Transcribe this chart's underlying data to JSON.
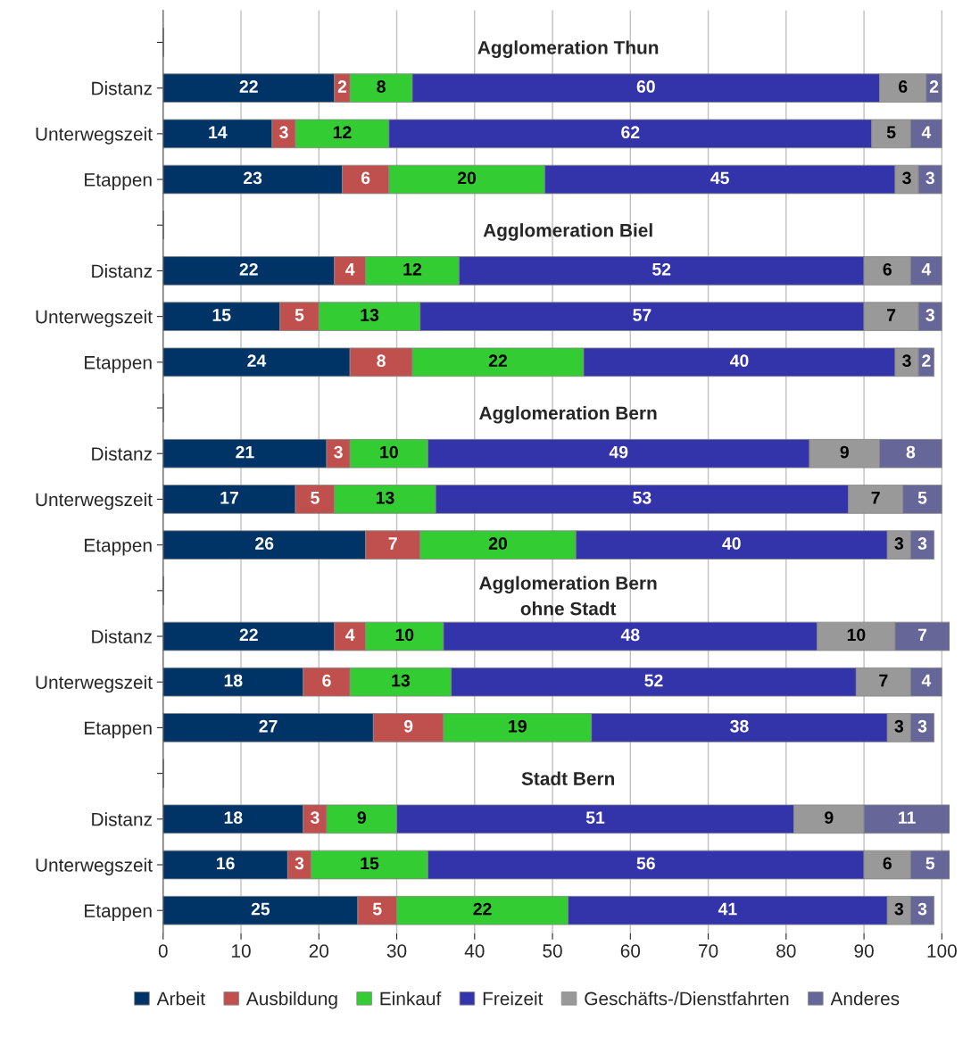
{
  "chart_data": {
    "type": "bar",
    "orientation": "horizontal",
    "stacked": true,
    "data_labels": true,
    "categories": [
      null,
      "Distanz",
      "Unterwegszeit",
      "Etappen",
      null,
      "Distanz",
      "Unterwegszeit",
      "Etappen",
      null,
      "Distanz",
      "Unterwegszeit",
      "Etappen",
      null,
      "Distanz",
      "Unterwegszeit",
      "Etappen",
      null,
      "Distanz",
      "Unterwegszeit",
      "Etappen"
    ],
    "annotations": [
      "Agglomeration Thun",
      "Agglomeration Biel",
      "Agglomeration Bern",
      "Agglomeration Bern\nohne Stadt",
      "Stadt Bern"
    ],
    "series": [
      {
        "name": "Arbeit",
        "color": "#003366",
        "values": [
          null,
          22,
          14,
          23,
          null,
          22,
          15,
          24,
          null,
          21,
          17,
          26,
          null,
          22,
          18,
          27,
          null,
          18,
          16,
          25
        ]
      },
      {
        "name": "Ausbildung",
        "color": "#c0504d",
        "values": [
          null,
          2,
          3,
          6,
          null,
          4,
          5,
          8,
          null,
          3,
          5,
          7,
          null,
          4,
          6,
          9,
          null,
          3,
          3,
          5
        ]
      },
      {
        "name": "Einkauf",
        "color": "#33cc33",
        "values": [
          null,
          8,
          12,
          20,
          null,
          12,
          13,
          22,
          null,
          10,
          13,
          20,
          null,
          10,
          13,
          19,
          null,
          9,
          15,
          22
        ]
      },
      {
        "name": "Freizeit",
        "color": "#3333aa",
        "values": [
          null,
          60,
          62,
          45,
          null,
          52,
          57,
          40,
          null,
          49,
          53,
          40,
          null,
          48,
          52,
          38,
          null,
          51,
          56,
          41
        ]
      },
      {
        "name": "Geschäfts-/Dienstfahrten",
        "color": "#999999",
        "values": [
          null,
          6,
          5,
          3,
          null,
          6,
          7,
          3,
          null,
          9,
          7,
          3,
          null,
          10,
          7,
          3,
          null,
          9,
          6,
          3
        ]
      },
      {
        "name": "Anderes",
        "color": "#666699",
        "values": [
          null,
          2,
          4,
          3,
          null,
          4,
          3,
          2,
          null,
          8,
          5,
          3,
          null,
          7,
          4,
          3,
          null,
          11,
          5,
          3
        ]
      }
    ],
    "xlim": [
      0,
      101
    ],
    "xticks": [
      0,
      10,
      20,
      30,
      40,
      50,
      60,
      70,
      80,
      90,
      100
    ],
    "grid": "x",
    "legend": "bottom"
  }
}
